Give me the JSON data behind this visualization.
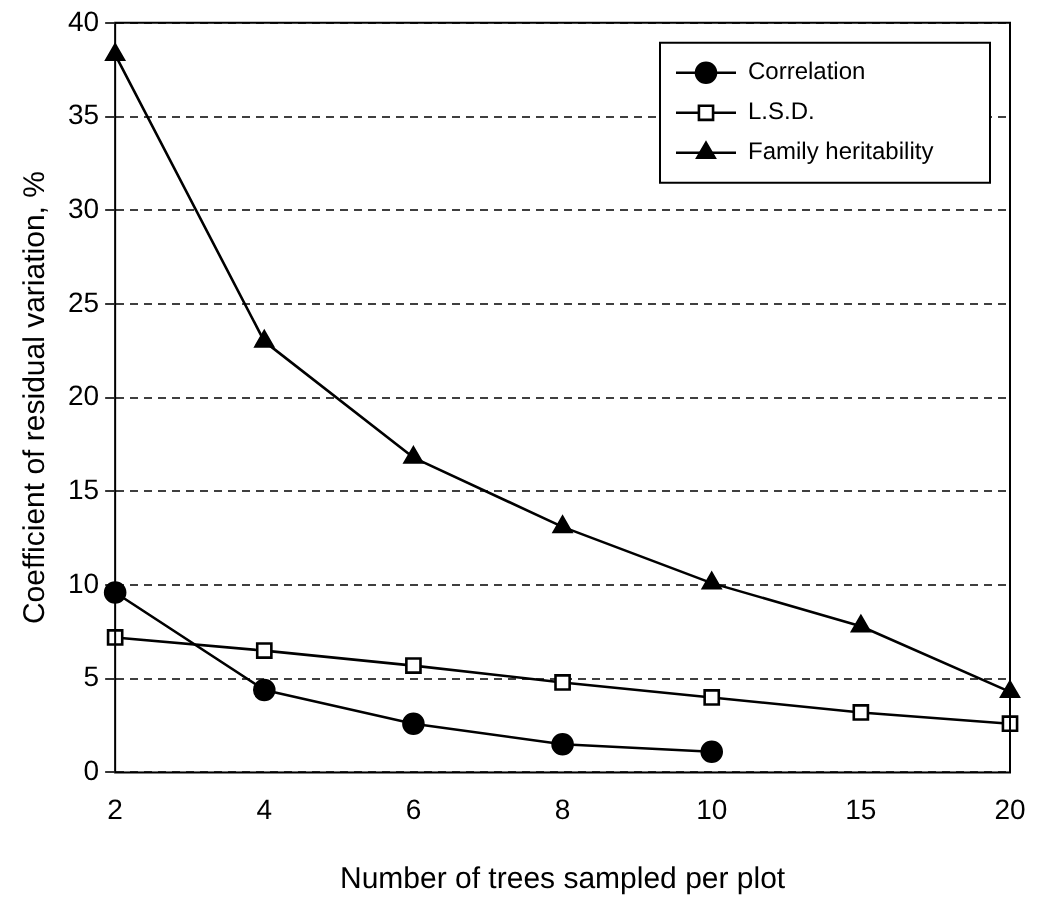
{
  "chart_data": {
    "type": "line",
    "xlabel": "Number of trees sampled per plot",
    "ylabel": "Coefficient of residual variation, %",
    "categories": [
      "2",
      "4",
      "6",
      "8",
      "10",
      "15",
      "20"
    ],
    "series": [
      {
        "name": "Correlation",
        "color": "#000000",
        "marker": "circle",
        "values": [
          9.6,
          4.4,
          2.6,
          1.5,
          1.1,
          null,
          null
        ]
      },
      {
        "name": "L.S.D.",
        "color": "#000000",
        "marker": "square",
        "values": [
          7.2,
          6.5,
          5.7,
          4.8,
          4.0,
          3.2,
          2.6
        ]
      },
      {
        "name": "Family heritability",
        "color": "#000000",
        "marker": "triangle",
        "values": [
          38.3,
          23.0,
          16.8,
          13.1,
          10.1,
          7.8,
          4.3
        ]
      }
    ],
    "ylim": [
      0,
      40
    ],
    "yticks": [
      0,
      5,
      10,
      15,
      20,
      25,
      30,
      35,
      40
    ],
    "grid": "y",
    "legend": "top right"
  }
}
